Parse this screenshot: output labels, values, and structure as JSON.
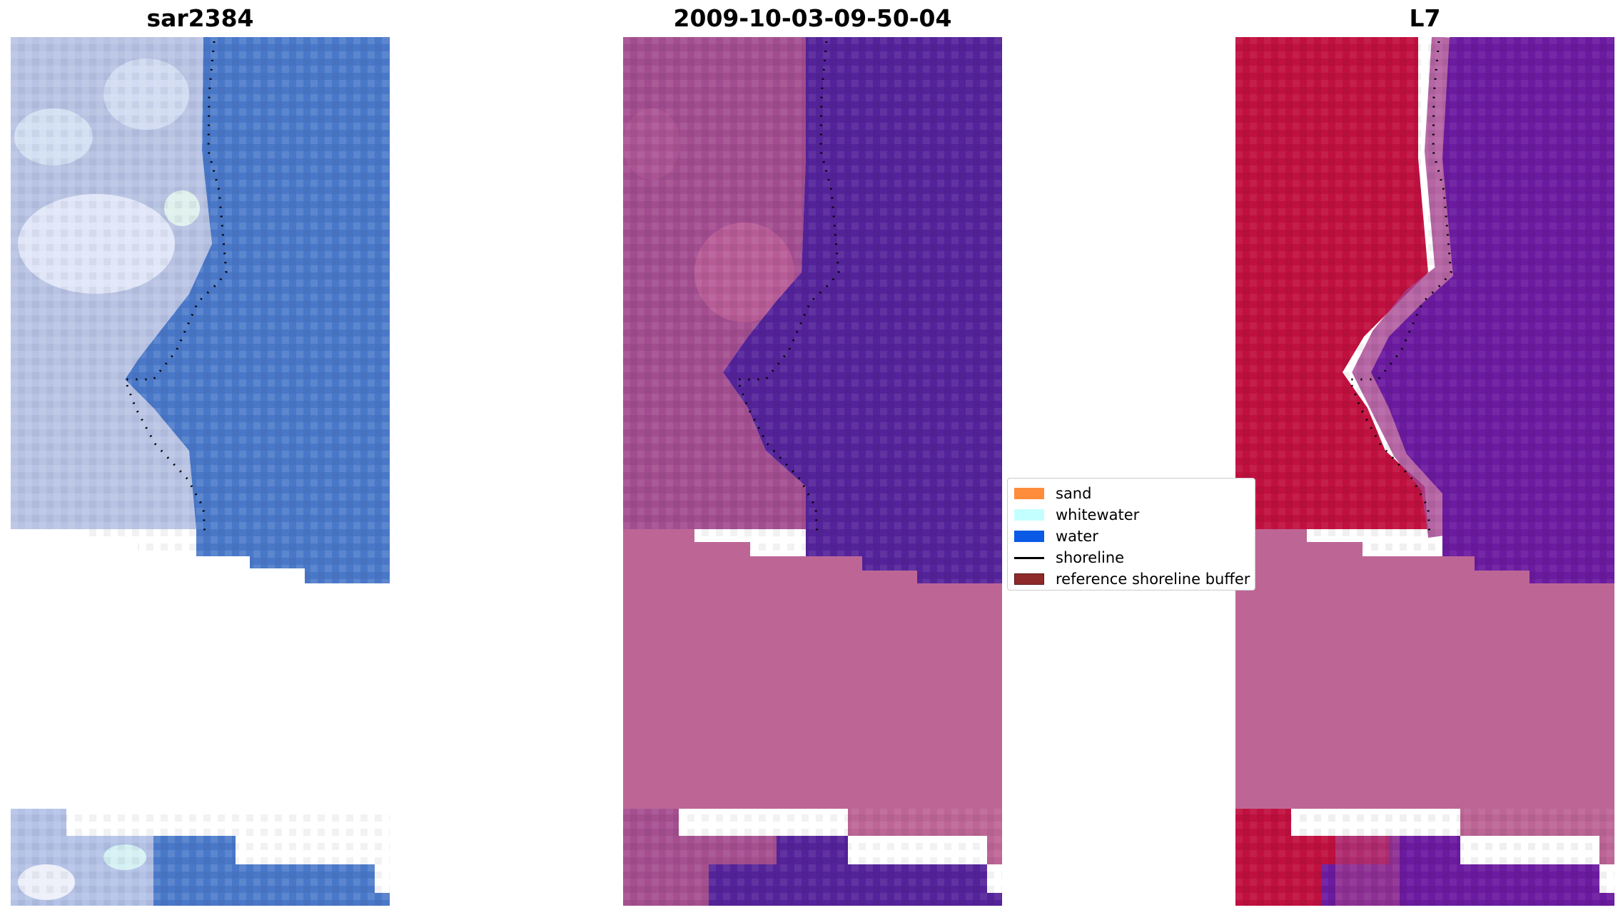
{
  "panels": [
    {
      "title": "sar2384",
      "image": "natural-color satellite image with shoreline"
    },
    {
      "title": "2009-10-03-09-50-04",
      "image": "classified image with shoreline"
    },
    {
      "title": "L7",
      "image": "water index image with shoreline"
    }
  ],
  "legend": [
    {
      "label": "sand",
      "color": "#ff8c3a",
      "kind": "patch"
    },
    {
      "label": "whitewater",
      "color": "#c4ffff",
      "kind": "patch"
    },
    {
      "label": "water",
      "color": "#0a5ae6",
      "kind": "patch"
    },
    {
      "label": "shoreline",
      "color": "#000000",
      "kind": "line"
    },
    {
      "label": "reference shoreline buffer",
      "color": "#8e2a2a",
      "kind": "patch"
    }
  ],
  "colors": {
    "rgb_sand": "#b9c4e2",
    "rgb_water": "#4a78c8",
    "class_land": "#a04b8f",
    "class_water": "#54239a",
    "buffer_pink": "#bd6696",
    "index_land": "#c11040",
    "index_water": "#6a1aa0"
  }
}
